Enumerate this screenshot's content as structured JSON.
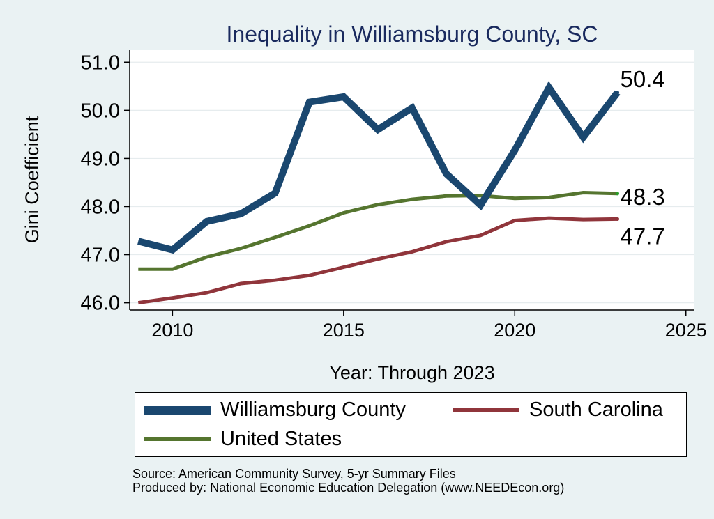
{
  "chart_data": {
    "type": "line",
    "title": "Inequality in Williamsburg County, SC",
    "xlabel": "Year: Through 2023",
    "ylabel": "Gini Coefficient",
    "xlim": [
      2008.75,
      2025.25
    ],
    "ylim": [
      45.85,
      51.25
    ],
    "xticks": [
      2010,
      2015,
      2020,
      2025
    ],
    "yticks": [
      46,
      47,
      48,
      49,
      50,
      51
    ],
    "ytick_labels": [
      "46.0",
      "47.0",
      "48.0",
      "49.0",
      "50.0",
      "51.0"
    ],
    "x": [
      2009,
      2010,
      2011,
      2012,
      2013,
      2014,
      2015,
      2016,
      2017,
      2018,
      2019,
      2020,
      2021,
      2022,
      2023
    ],
    "series": [
      {
        "name": "Williamsburg County",
        "color": "#1a476f",
        "values": [
          47.28,
          47.1,
          47.69,
          47.85,
          48.28,
          50.17,
          50.28,
          49.6,
          50.05,
          48.68,
          48.03,
          49.17,
          50.47,
          49.44,
          50.37
        ],
        "end_label": "50.4"
      },
      {
        "name": "United States",
        "color": "#55752f",
        "values": [
          46.7,
          46.7,
          46.95,
          47.13,
          47.36,
          47.6,
          47.87,
          48.04,
          48.15,
          48.22,
          48.23,
          48.17,
          48.19,
          48.29,
          48.27
        ],
        "end_label": "48.3"
      },
      {
        "name": "South Carolina",
        "color": "#90353b",
        "values": [
          46.0,
          46.1,
          46.21,
          46.4,
          46.47,
          46.57,
          46.74,
          46.91,
          47.06,
          47.27,
          47.4,
          47.71,
          47.76,
          47.73,
          47.74
        ],
        "end_label": "47.7"
      }
    ]
  },
  "legend": {
    "items": [
      {
        "label": "Williamsburg County",
        "color": "#1a476f"
      },
      {
        "label": "South Carolina",
        "color": "#90353b"
      },
      {
        "label": "United States",
        "color": "#55752f"
      }
    ]
  },
  "footnotes": {
    "source": "Source: American Community Survey, 5-yr Summary Files",
    "produced_by": "Produced by: National Economic Education Delegation (www.NEEDEcon.org)"
  }
}
